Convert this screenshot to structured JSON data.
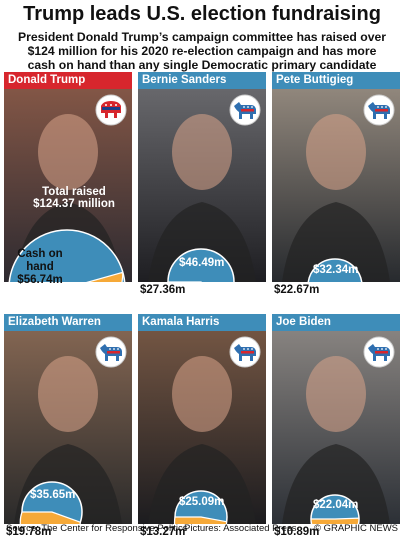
{
  "title": "Trump leads U.S. election fundraising",
  "subtitle_lines": [
    "President Donald Trump’s campaign committee has raised over",
    "$124 million for his 2020 re-election campaign and has more",
    "cash on hand than any single Democratic primary candidate"
  ],
  "watermark": "GRAPHIC NEWS",
  "footer": {
    "source": "Source: The Center for Responsive Politics",
    "pictures": "Pictures: Associated Press",
    "credit": "© GRAPHIC NEWS"
  },
  "colors": {
    "total_raised": "#3e8db9",
    "cash_on_hand": "#f6a938",
    "republican": "#d7262d",
    "democrat": "#3e8db9"
  },
  "chart_data": {
    "type": "pie",
    "series_labels": {
      "total": "Total raised",
      "cash": "Cash on hand"
    },
    "units": "$ million",
    "candidates": [
      {
        "name": "Donald Trump",
        "party": "republican",
        "party_icon": "republican-elephant-icon",
        "total": 124.37,
        "cash": 56.74,
        "total_label": "$124.37 million",
        "cash_label": "$56.74m"
      },
      {
        "name": "Bernie Sanders",
        "party": "democrat",
        "party_icon": "democrat-donkey-icon",
        "total": 46.49,
        "cash": 27.36,
        "total_label": "$46.49m",
        "cash_label": "$27.36m"
      },
      {
        "name": "Pete Buttigieg",
        "party": "democrat",
        "party_icon": "democrat-donkey-icon",
        "total": 32.34,
        "cash": 22.67,
        "total_label": "$32.34m",
        "cash_label": "$22.67m"
      },
      {
        "name": "Elizabeth Warren",
        "party": "democrat",
        "party_icon": "democrat-donkey-icon",
        "total": 35.65,
        "cash": 19.78,
        "total_label": "$35.65m",
        "cash_label": "$19.78m"
      },
      {
        "name": "Kamala Harris",
        "party": "democrat",
        "party_icon": "democrat-donkey-icon",
        "total": 25.09,
        "cash": 13.27,
        "total_label": "$25.09m",
        "cash_label": "$13.27m"
      },
      {
        "name": "Joe Biden",
        "party": "democrat",
        "party_icon": "democrat-donkey-icon",
        "total": 22.04,
        "cash": 10.89,
        "total_label": "$22.04m",
        "cash_label": "$10.89m"
      }
    ]
  }
}
